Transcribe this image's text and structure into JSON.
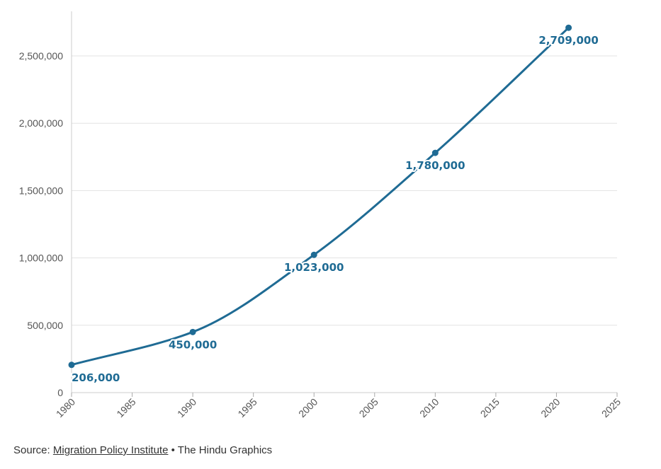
{
  "chart_data": {
    "type": "line",
    "x": [
      1980,
      1990,
      2000,
      2010,
      2021
    ],
    "series": [
      {
        "values": [
          206000,
          450000,
          1023000,
          1780000,
          2709000
        ]
      }
    ],
    "data_labels": [
      "206,000",
      "450,000",
      "1,023,000",
      "1,780,000",
      "2,709,000"
    ],
    "xlim": [
      1980,
      2025
    ],
    "ylim": [
      0,
      2700000
    ],
    "x_ticks": [
      1980,
      1985,
      1990,
      1995,
      2000,
      2005,
      2010,
      2015,
      2020,
      2025
    ],
    "y_ticks": [
      0,
      500000,
      1000000,
      1500000,
      2000000,
      2500000
    ],
    "x_tick_labels": [
      "1980",
      "1985",
      "1990",
      "1995",
      "2000",
      "2005",
      "2010",
      "2015",
      "2020",
      "2025"
    ],
    "y_tick_labels": [
      "0",
      "500,000",
      "1,000,000",
      "1,500,000",
      "2,000,000",
      "2,500,000"
    ],
    "grid": true,
    "line_color": "#1f6b94",
    "gridline_color": "#e3e3e3"
  },
  "footer": {
    "source_prefix": "Source: ",
    "source_link": "Migration Policy Institute",
    "separator": " • ",
    "credit": "The Hindu Graphics"
  }
}
